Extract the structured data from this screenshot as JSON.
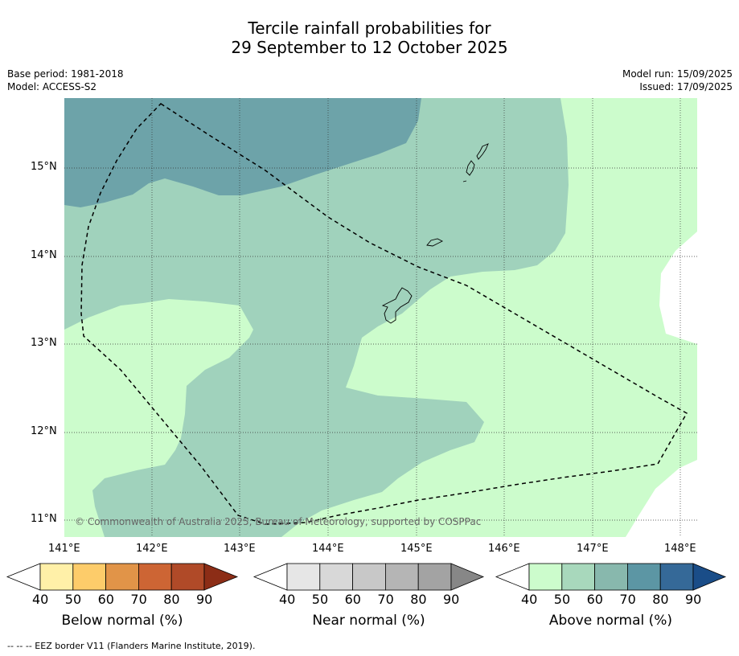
{
  "title_line1": "Tercile rainfall probabilities for",
  "title_line2": "29 September to 12 October 2025",
  "meta": {
    "base_period": "Base period: 1981-2018",
    "model": "Model: ACCESS-S2",
    "model_run": "Model run: 15/09/2025",
    "issued": "Issued: 17/09/2025"
  },
  "map": {
    "lat_labels": [
      "15°N",
      "14°N",
      "13°N",
      "12°N",
      "11°N"
    ],
    "lon_labels": [
      "141°E",
      "142°E",
      "143°E",
      "144°E",
      "145°E",
      "146°E",
      "147°E",
      "148°E"
    ],
    "copyright": "© Commonwealth of Australia 2025, Bureau of Meteorology, supported by COSPPac"
  },
  "colorbars": [
    {
      "title": "Below normal (%)",
      "ticks": [
        "40",
        "50",
        "60",
        "70",
        "80",
        "90"
      ],
      "colors": [
        "#ffffff",
        "#fff0a8",
        "#fdcc6a",
        "#e19448",
        "#cd6534",
        "#b04a28",
        "#8c2d16"
      ]
    },
    {
      "title": "Near normal (%)",
      "ticks": [
        "40",
        "50",
        "60",
        "70",
        "80",
        "90"
      ],
      "colors": [
        "#ffffff",
        "#e6e6e6",
        "#d8d8d8",
        "#c8c8c8",
        "#b5b5b5",
        "#a3a3a3",
        "#878787"
      ]
    },
    {
      "title": "Above normal (%)",
      "ticks": [
        "40",
        "50",
        "60",
        "70",
        "80",
        "90"
      ],
      "colors": [
        "#ffffff",
        "#ccfccc",
        "#a8d8bc",
        "#88b8ad",
        "#5c96a4",
        "#356998",
        "#1a4d88"
      ]
    }
  ],
  "footer": "--  --  -- EEZ border V11 (Flanders Marine Institute, 2019)."
}
